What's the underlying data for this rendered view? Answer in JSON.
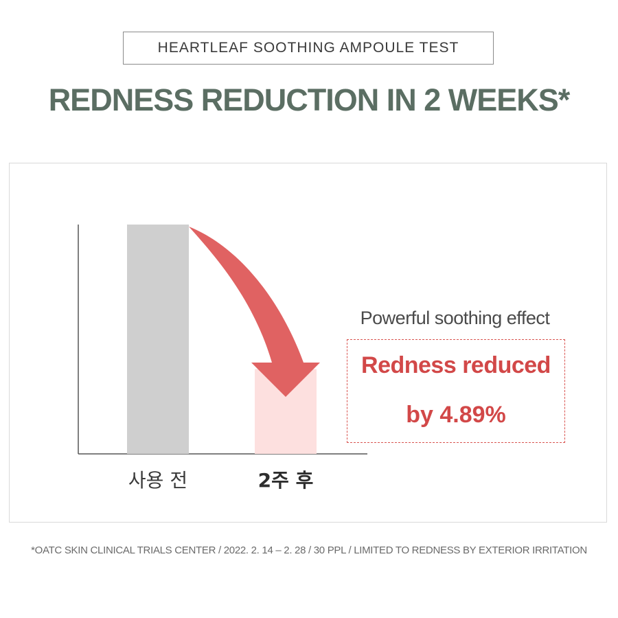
{
  "badge_text": "HEARTLEAF SOOTHING AMPOULE TEST",
  "headline": "REDNESS REDUCTION  IN 2 WEEKS*",
  "effect_label": "Powerful soothing effect",
  "result": {
    "line1": "Redness reduced",
    "line2": "by 4.89%"
  },
  "footnote": "*OATC SKIN CLINICAL TRIALS CENTER / 2022. 2. 14 – 2. 28 / 30 PPL / LIMITED TO REDNESS BY EXTERIOR IRRITATION",
  "colors": {
    "headline": "#5b6e63",
    "before_bar": "#cfcfcf",
    "after_bar": "#fde0df",
    "arrow": "#e06262",
    "result_text": "#d24848"
  },
  "chart_data": {
    "type": "bar",
    "title": "",
    "xlabel": "",
    "ylabel": "",
    "categories": [
      "사용 전",
      "2주 후"
    ],
    "values": [
      100,
      37
    ],
    "highlighted_category": "2주 후",
    "annotation": "Redness reduced by 4.89%",
    "arrow": "from top of first bar down to top of second bar",
    "grid": false,
    "legend": "none"
  }
}
